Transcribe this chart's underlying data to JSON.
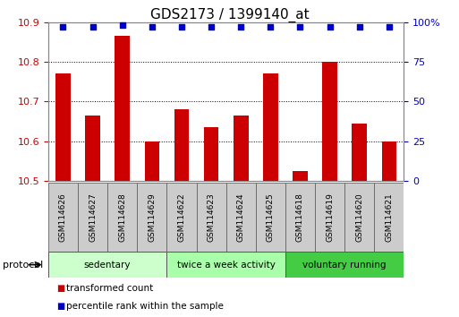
{
  "title": "GDS2173 / 1399140_at",
  "categories": [
    "GSM114626",
    "GSM114627",
    "GSM114628",
    "GSM114629",
    "GSM114622",
    "GSM114623",
    "GSM114624",
    "GSM114625",
    "GSM114618",
    "GSM114619",
    "GSM114620",
    "GSM114621"
  ],
  "bar_values": [
    10.77,
    10.665,
    10.865,
    10.6,
    10.68,
    10.635,
    10.665,
    10.77,
    10.525,
    10.8,
    10.645,
    10.6
  ],
  "percentile_values": [
    97,
    97,
    98,
    97,
    97,
    97,
    97,
    97,
    97,
    97,
    97,
    97
  ],
  "bar_color": "#cc0000",
  "dot_color": "#0000cc",
  "ylim_left": [
    10.5,
    10.9
  ],
  "ylim_right": [
    0,
    100
  ],
  "yticks_left": [
    10.5,
    10.6,
    10.7,
    10.8,
    10.9
  ],
  "yticks_right": [
    0,
    25,
    50,
    75,
    100
  ],
  "ytick_labels_right": [
    "0",
    "25",
    "50",
    "75",
    "100%"
  ],
  "groups": [
    {
      "label": "sedentary",
      "indices": [
        0,
        1,
        2,
        3
      ],
      "color": "#ccffcc"
    },
    {
      "label": "twice a week activity",
      "indices": [
        4,
        5,
        6,
        7
      ],
      "color": "#aaffaa"
    },
    {
      "label": "voluntary running",
      "indices": [
        8,
        9,
        10,
        11
      ],
      "color": "#44cc44"
    }
  ],
  "protocol_label": "protocol",
  "legend_items": [
    {
      "label": "transformed count",
      "color": "#cc0000"
    },
    {
      "label": "percentile rank within the sample",
      "color": "#0000cc"
    }
  ],
  "bg_color": "#ffffff",
  "grid_color": "#000000",
  "bar_width": 0.5,
  "title_fontsize": 11,
  "tick_fontsize": 8,
  "gsm_cell_color": "#cccccc",
  "gsm_cell_edge": "#666666"
}
